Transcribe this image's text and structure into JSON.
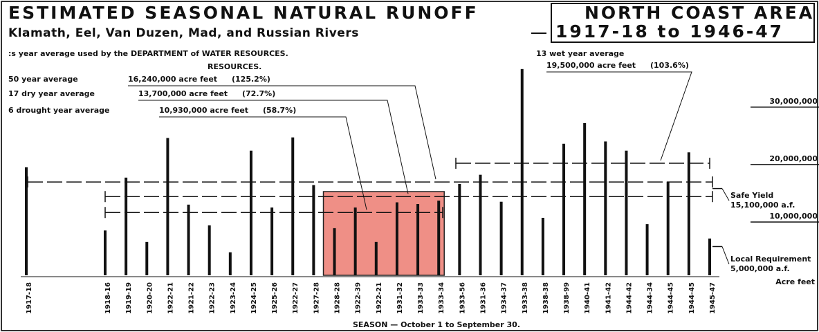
{
  "chart_data": {
    "type": "bar",
    "title": "ESTIMATED SEASONAL NATURAL RUNOFF",
    "subtitle": "Klamath, Eel, Van Duzen, Mad, and Russian Rivers",
    "area_title": "NORTH COAST AREA",
    "period": "1917-18 to 1946-47",
    "note": ":s year average used by the DEPARTMENT of WATER RESOURCES.",
    "note2": "RESOURCES.",
    "x_label": "SEASON — October 1 to September 30.",
    "y_label": "Acre feet",
    "categories": [
      "1917-18",
      "1918-16",
      "1919-19",
      "1920-20",
      "1922-21",
      "1921-22",
      "1922-23",
      "1923-24",
      "1924-25",
      "1925-26",
      "1922-27",
      "1927-28",
      "1928-28",
      "1922-39",
      "1922-21",
      "1931-32",
      "1933-33",
      "1933-34",
      "1933-56",
      "1931-36",
      "1934-37",
      "1933-38",
      "1938-38",
      "1938-99",
      "1940-41",
      "1941-42",
      "1944-42",
      "1944-34",
      "1944-45",
      "1944-45",
      "1945-47"
    ],
    "values": [
      18800000,
      7800000,
      17000000,
      5800000,
      23900000,
      12300000,
      8700000,
      4000000,
      21700000,
      11800000,
      24000000,
      15700000,
      8200000,
      11800000,
      5800000,
      12700000,
      12400000,
      13000000,
      15900000,
      17500000,
      12800000,
      35900000,
      10000000,
      22900000,
      26500000,
      23300000,
      21700000,
      8900000,
      16300000,
      21400000,
      6400000
    ],
    "color": "#111111",
    "ylim": [
      0,
      36000000
    ],
    "yticks": [
      {
        "value": 10000000,
        "label": "10,000,000"
      },
      {
        "value": 20000000,
        "label": "20,000,000"
      },
      {
        "value": 30000000,
        "label": "30,000,000"
      }
    ],
    "reference_lines": [
      {
        "name": "50 year average",
        "value": 16240000,
        "value_label": "16,240,000 acre feet",
        "percent_label": "(125.2%)"
      },
      {
        "name": "17 dry year average",
        "value": 13700000,
        "value_label": "13,700,000 acre feet",
        "percent_label": "(72.7%)"
      },
      {
        "name": "6 drought year average",
        "value": 10930000,
        "value_label": "10,930,000 acre feet",
        "percent_label": "(58.7%)"
      },
      {
        "name": "13 wet year average",
        "value": 19500000,
        "value_label": "19,500,000 acre feet",
        "percent_label": "(103.6%)"
      }
    ],
    "safe_yield": {
      "name": "Safe Yield",
      "value": 15100000,
      "value_label": "15,100,000 a.f."
    },
    "local_requirement": {
      "name": "Local Requirement",
      "value": 5000000,
      "value_label": "5,000,000 a.f."
    }
  }
}
